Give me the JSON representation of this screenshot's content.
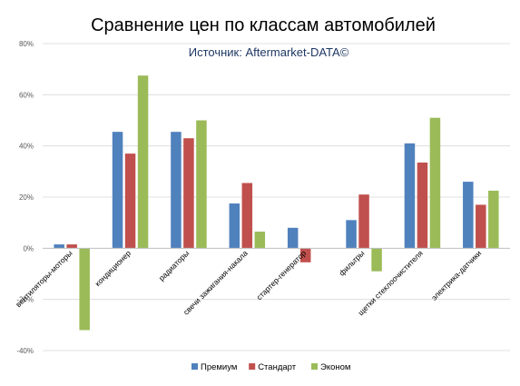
{
  "chart_data": {
    "type": "bar",
    "title": "Сравнение цен по классам автомобилей",
    "subtitle": "Источник: Aftermarket-DATA©",
    "categories": [
      "вентиляторы-моторы",
      "кондиционер",
      "радиаторы",
      "свечи зажигания-накала",
      "стартер-генератор",
      "фильтры",
      "щетки стеклоочистителя",
      "электрика-датчики"
    ],
    "series": [
      {
        "name": "Премиум",
        "color": "#4f81bd",
        "values": [
          1.5,
          45.5,
          45.5,
          17.5,
          8.0,
          11.0,
          41.0,
          26.0
        ]
      },
      {
        "name": "Стандарт",
        "color": "#c0504d",
        "values": [
          1.5,
          37.0,
          43.0,
          25.5,
          -5.5,
          21.0,
          33.5,
          17.0
        ]
      },
      {
        "name": "Эконом",
        "color": "#9bbb59",
        "values": [
          -32.0,
          67.5,
          50.0,
          6.5,
          0,
          -9.0,
          51.0,
          22.5
        ]
      }
    ],
    "ylim": [
      -40,
      80
    ],
    "yticks": [
      "-40%",
      "-20%",
      "0%",
      "20%",
      "40%",
      "60%",
      "80%"
    ],
    "ytick_values": [
      -40,
      -20,
      0,
      20,
      40,
      60,
      80
    ],
    "grid": true,
    "legend": "bottom"
  }
}
